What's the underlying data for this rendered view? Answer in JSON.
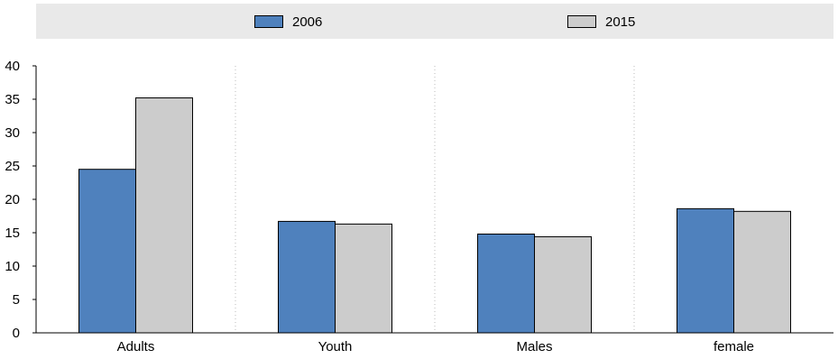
{
  "chart_data": {
    "type": "bar",
    "title": "",
    "xlabel": "",
    "ylabel": "",
    "categories": [
      "Adults",
      "Youth",
      "Males",
      "female"
    ],
    "series": [
      {
        "name": "2006",
        "values": [
          24.5,
          16.7,
          14.8,
          18.6
        ],
        "color": "#4f81bd"
      },
      {
        "name": "2015",
        "values": [
          35.2,
          16.3,
          14.4,
          18.2
        ],
        "color": "#cccccc"
      }
    ],
    "ylim": [
      0,
      40
    ],
    "yticks": [
      0,
      5,
      10,
      15,
      20,
      25,
      30,
      35,
      40
    ],
    "grid": true,
    "legend_position": "top"
  }
}
